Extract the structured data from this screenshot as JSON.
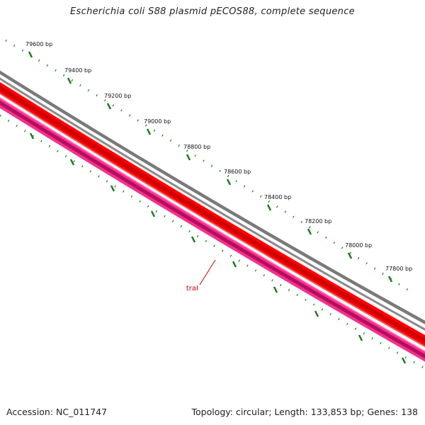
{
  "title": "Escherichia coli S88 plasmid pECOS88, complete sequence",
  "footer": {
    "accession": "Accession: NC_011747",
    "summary": "Topology: circular; Length: 133,853 bp; Genes: 138"
  },
  "tick_labels": [
    "79600 bp",
    "79400 bp",
    "79200 bp",
    "79000 bp",
    "78800 bp",
    "78600 bp",
    "78400 bp",
    "78200 bp",
    "78000 bp",
    "77800 bp"
  ],
  "gene_label": "traI",
  "colors": {
    "background": "#ffffff",
    "ruler_ticks": "#1e7a1e",
    "backbone": "#777777",
    "forward_feature": "#ff0000",
    "forward_feature_dark": "#cc0000",
    "reverse_feature": "#ff2e8c",
    "reverse_feature_dark": "#b0005a",
    "gene_label": "#cc0000"
  }
}
